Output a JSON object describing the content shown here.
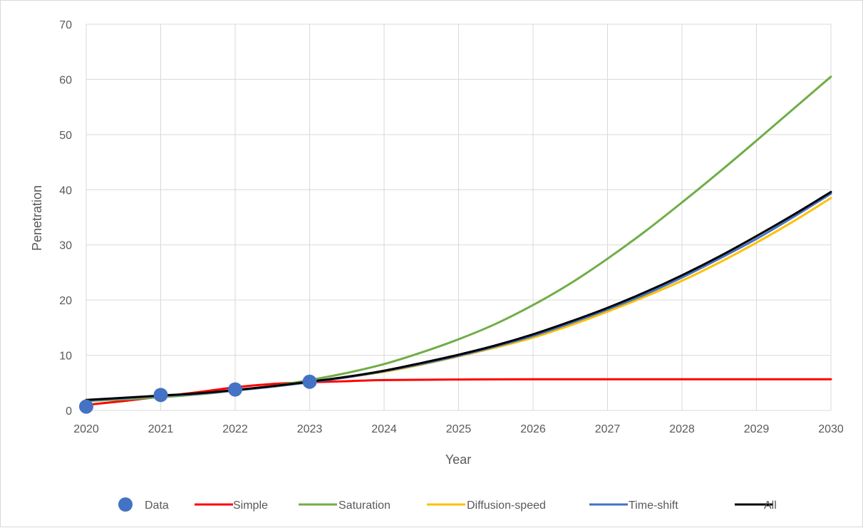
{
  "chart_data": {
    "type": "line",
    "xlabel": "Year",
    "ylabel": "Penetration",
    "xlim": [
      2020,
      2030
    ],
    "ylim": [
      0,
      70
    ],
    "x_ticks": [
      "2020",
      "2021",
      "2022",
      "2023",
      "2024",
      "2025",
      "2026",
      "2027",
      "2028",
      "2029",
      "2030"
    ],
    "y_ticks": [
      "0",
      "10",
      "20",
      "30",
      "40",
      "50",
      "60",
      "70"
    ],
    "grid": true,
    "legend_position": "bottom",
    "series": [
      {
        "name": "Simple",
        "color": "#ff0000",
        "x": [
          2020,
          2020.5,
          2021,
          2021.5,
          2022,
          2022.5,
          2023,
          2023.5,
          2024,
          2025,
          2026,
          2027,
          2028,
          2029,
          2030
        ],
        "y": [
          1.0,
          1.7,
          2.5,
          3.3,
          4.2,
          4.8,
          5.1,
          5.3,
          5.5,
          5.6,
          5.65,
          5.65,
          5.65,
          5.65,
          5.65
        ]
      },
      {
        "name": "Saturation",
        "color": "#70ad47",
        "x": [
          2020,
          2020.5,
          2021,
          2021.5,
          2022,
          2022.5,
          2023,
          2023.5,
          2024,
          2024.5,
          2025,
          2025.5,
          2026,
          2026.5,
          2027,
          2027.5,
          2028,
          2028.5,
          2029,
          2029.5,
          2030
        ],
        "y": [
          1.7,
          2.0,
          2.4,
          2.9,
          3.6,
          4.4,
          5.5,
          6.8,
          8.4,
          10.5,
          12.9,
          15.7,
          19.1,
          23.0,
          27.5,
          32.4,
          37.7,
          43.2,
          48.9,
          54.7,
          60.5
        ]
      },
      {
        "name": "Diffusion-speed",
        "color": "#ffc000",
        "x": [
          2020,
          2020.5,
          2021,
          2021.5,
          2022,
          2022.5,
          2023,
          2023.5,
          2024,
          2024.5,
          2025,
          2025.5,
          2026,
          2026.5,
          2027,
          2027.5,
          2028,
          2028.5,
          2029,
          2029.5,
          2030
        ],
        "y": [
          1.8,
          2.2,
          2.6,
          3.0,
          3.6,
          4.3,
          5.1,
          6.0,
          7.0,
          8.3,
          9.8,
          11.4,
          13.2,
          15.4,
          17.9,
          20.6,
          23.5,
          26.8,
          30.4,
          34.3,
          38.5
        ]
      },
      {
        "name": "Time-shift",
        "color": "#4472c4",
        "x": [
          2020,
          2020.5,
          2021,
          2021.5,
          2022,
          2022.5,
          2023,
          2023.5,
          2024,
          2024.5,
          2025,
          2025.5,
          2026,
          2026.5,
          2027,
          2027.5,
          2028,
          2028.5,
          2029,
          2029.5,
          2030
        ],
        "y": [
          1.8,
          2.2,
          2.6,
          3.0,
          3.6,
          4.3,
          5.1,
          6.0,
          7.1,
          8.4,
          9.9,
          11.6,
          13.5,
          15.8,
          18.3,
          21.0,
          24.1,
          27.5,
          31.1,
          35.1,
          39.3
        ]
      },
      {
        "name": "All",
        "color": "#000000",
        "x": [
          2020,
          2020.5,
          2021,
          2021.5,
          2022,
          2022.5,
          2023,
          2023.5,
          2024,
          2024.5,
          2025,
          2025.5,
          2026,
          2026.5,
          2027,
          2027.5,
          2028,
          2028.5,
          2029,
          2029.5,
          2030
        ],
        "y": [
          1.9,
          2.3,
          2.7,
          3.1,
          3.7,
          4.4,
          5.2,
          6.1,
          7.2,
          8.6,
          10.1,
          11.8,
          13.8,
          16.1,
          18.6,
          21.4,
          24.5,
          27.9,
          31.6,
          35.5,
          39.6
        ]
      }
    ],
    "points": {
      "name": "Data",
      "color": "#4472c4",
      "x": [
        2020,
        2021,
        2022,
        2023
      ],
      "y": [
        0.7,
        2.8,
        3.8,
        5.2
      ]
    },
    "legend": [
      {
        "label": "Data",
        "kind": "marker",
        "color": "#4472c4"
      },
      {
        "label": "Simple",
        "kind": "line",
        "color": "#ff0000"
      },
      {
        "label": "Saturation",
        "kind": "line",
        "color": "#70ad47"
      },
      {
        "label": "Diffusion-speed",
        "kind": "line",
        "color": "#ffc000"
      },
      {
        "label": "Time-shift",
        "kind": "line",
        "color": "#4472c4"
      },
      {
        "label": "All",
        "kind": "line",
        "color": "#000000"
      }
    ]
  }
}
